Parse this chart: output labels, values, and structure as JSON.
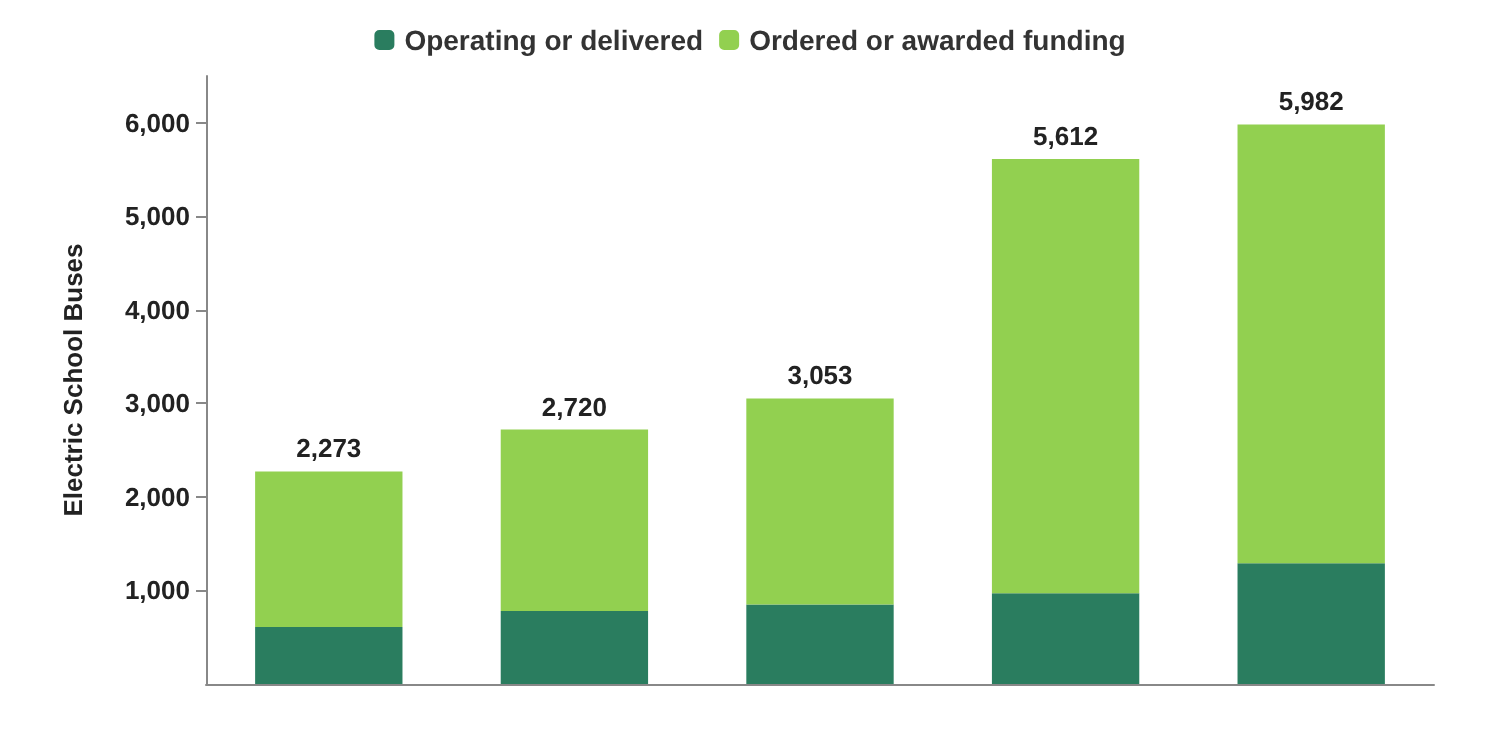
{
  "chart_data": {
    "type": "bar",
    "stacked": true,
    "ylabel": "Electric School Buses",
    "categories": [
      null,
      null,
      null,
      null,
      null
    ],
    "series": [
      {
        "name": "Operating or delivered",
        "color": "#2a7d5f",
        "values": [
          610,
          780,
          850,
          970,
          1290
        ]
      },
      {
        "name": "Ordered or awarded funding",
        "color": "#92d050",
        "values": [
          1663,
          1940,
          2203,
          4642,
          4692
        ]
      }
    ],
    "totals": [
      "2,273",
      "2,720",
      "3,053",
      "5,612",
      "5,982"
    ],
    "ylim": [
      0,
      6500
    ],
    "yticks": [
      {
        "value": 1000,
        "label": "1,000"
      },
      {
        "value": 2000,
        "label": "2,000"
      },
      {
        "value": 3000,
        "label": "3,000"
      },
      {
        "value": 4000,
        "label": "4,000"
      },
      {
        "value": 5000,
        "label": "5,000"
      },
      {
        "value": 6000,
        "label": "6,000"
      }
    ],
    "grid": false,
    "legend": "top"
  }
}
